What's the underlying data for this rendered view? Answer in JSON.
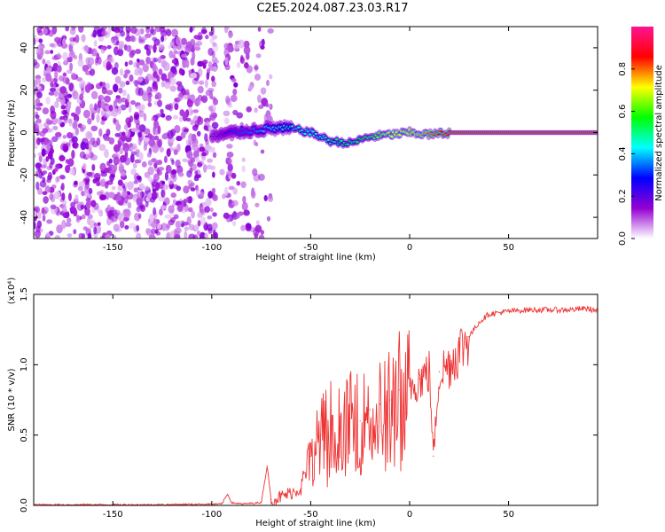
{
  "title": "C2E5.2024.087.23.03.R17",
  "chart_data": [
    {
      "type": "heatmap",
      "xlabel": "Height of straight line (km)",
      "ylabel": "Frequency (Hz)",
      "xlim": [
        -190,
        95
      ],
      "ylim": [
        -50,
        50
      ],
      "x_ticks": [
        -150,
        -100,
        -50,
        0,
        50
      ],
      "y_ticks": [
        -40,
        -20,
        0,
        20,
        40
      ],
      "colorbar": {
        "label": "Normalized spectral amplitude",
        "range": [
          0.0,
          1.0
        ],
        "ticks": [
          "0.0",
          "0.2",
          "0.4",
          "0.6",
          "0.8"
        ],
        "colors": [
          "#ffffff",
          "#9400d3",
          "#0000ff",
          "#00ffff",
          "#00ff00",
          "#ffff00",
          "#ff0000",
          "#ff1493"
        ]
      },
      "ridge": {
        "x": [
          -100,
          -90,
          -80,
          -70,
          -60,
          -50,
          -40,
          -30,
          -20,
          -10,
          0,
          10,
          20,
          40,
          60,
          80,
          95
        ],
        "frequency": [
          -2,
          0,
          1,
          2,
          2,
          0,
          -4,
          -5,
          -2,
          -1,
          0,
          -1,
          0,
          0,
          0,
          0,
          0
        ],
        "amplitude": [
          0.2,
          0.3,
          0.35,
          0.45,
          0.5,
          0.45,
          0.5,
          0.55,
          0.6,
          0.7,
          0.75,
          0.8,
          0.9,
          0.9,
          0.9,
          0.9,
          0.9
        ]
      },
      "noise_region_x": [
        -190,
        -70
      ]
    },
    {
      "type": "line",
      "xlabel": "Height of straight line (km)",
      "ylabel": "SNR (10 * v/v)",
      "y_multiplier": "(x10⁴)",
      "xlim": [
        -190,
        95
      ],
      "ylim": [
        0,
        1.5
      ],
      "x_ticks": [
        -150,
        -100,
        -50,
        0,
        50
      ],
      "y_ticks": [
        "0.0",
        "0.5",
        "1.0",
        "1.5"
      ],
      "series": [
        {
          "color": "#ee3333",
          "x": [
            -190,
            -160,
            -130,
            -110,
            -95,
            -92,
            -90,
            -85,
            -75,
            -72,
            -70,
            -65,
            -55,
            -50,
            -45,
            -40,
            -35,
            -30,
            -25,
            -20,
            -15,
            -10,
            -5,
            0,
            5,
            10,
            12,
            15,
            20,
            25,
            30,
            35,
            40,
            50,
            60,
            70,
            80,
            90,
            95
          ],
          "y": [
            0.005,
            0.005,
            0.005,
            0.008,
            0.01,
            0.08,
            0.02,
            0.01,
            0.02,
            0.28,
            0.04,
            0.06,
            0.12,
            0.35,
            0.5,
            0.6,
            0.55,
            0.62,
            0.6,
            0.68,
            0.72,
            0.75,
            0.82,
            0.85,
            0.9,
            0.95,
            0.35,
            0.95,
            1.0,
            1.1,
            1.2,
            1.3,
            1.36,
            1.38,
            1.39,
            1.39,
            1.39,
            1.4,
            1.38
          ]
        }
      ]
    }
  ]
}
